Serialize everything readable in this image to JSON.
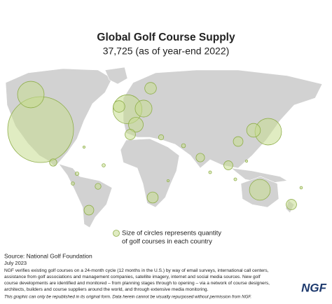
{
  "header": {
    "title": "Global Golf Course Supply",
    "subtitle": "37,725 (as of year-end 2022)"
  },
  "map": {
    "bubbles": [
      16000,
      2600,
      3100,
      1050,
      800,
      500,
      500,
      400,
      2600,
      700,
      350,
      1600,
      400,
      450,
      350,
      200,
      130,
      270,
      300,
      100,
      60,
      50,
      40,
      40,
      30,
      30,
      25,
      20,
      20,
      20
    ]
  },
  "legend": {
    "lines": [
      "Size of circles represents quantity",
      "of golf courses in each country"
    ]
  },
  "footer": {
    "source": "Source: National Golf Foundation",
    "date": "July 2023",
    "notes": [
      "NGF verifies existing golf courses on a 24-month cycle (12 months in the U.S.) by way of email surveys, international call centers,",
      "assistance from golf associations and management companies, satellite imagery, internet and social media sources. New golf",
      "course developments are identified and monitored – from planning stages through to opening – via a network of course designers,",
      "architects, builders and course suppliers around the world, and through extensive media monitoring."
    ],
    "disclaimer": "This graphic can only be republished in its original form. Data herein cannot be visually repurposed without permission from NGF.",
    "logo": "NGF"
  }
}
